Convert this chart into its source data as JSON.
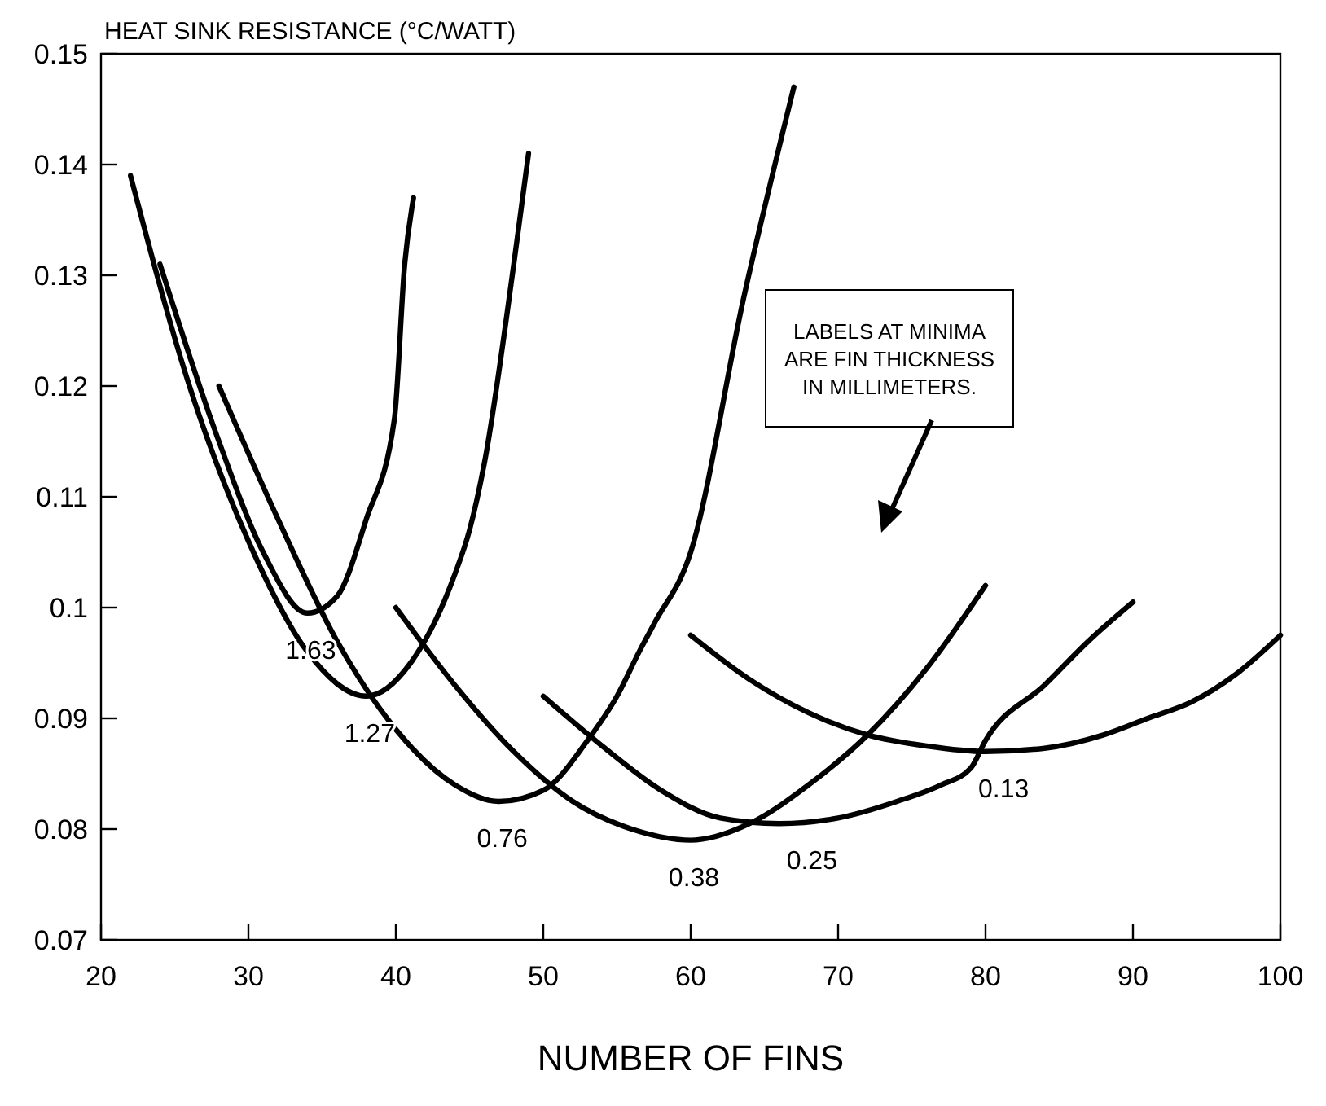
{
  "chart_data": {
    "type": "line",
    "ylabel": "HEAT SINK RESISTANCE (°C/WATT)",
    "xlabel": "NUMBER OF FINS",
    "xlim": [
      20,
      100
    ],
    "ylim": [
      0.07,
      0.15
    ],
    "xticks": [
      20,
      30,
      40,
      50,
      60,
      70,
      80,
      90,
      100
    ],
    "yticks": [
      0.07,
      0.08,
      0.09,
      0.1,
      0.11,
      0.12,
      0.13,
      0.14,
      0.15
    ],
    "grid": false,
    "marker": "none",
    "line_style": "solid",
    "series": [
      {
        "color": "#000000",
        "x": [
          24,
          28,
          31,
          34,
          36,
          38,
          39.9,
          40.6,
          41.2
        ],
        "values": [
          0.131,
          0.115,
          0.105,
          0.0995,
          0.101,
          0.108,
          0.117,
          0.131,
          0.137
        ]
      },
      {
        "color": "#000000",
        "x": [
          22,
          26,
          30,
          34,
          38,
          41,
          44,
          45,
          46,
          48,
          49
        ],
        "values": [
          0.139,
          0.12,
          0.106,
          0.096,
          0.092,
          0.095,
          0.103,
          0.107,
          0.113,
          0.131,
          0.141
        ]
      },
      {
        "color": "#000000",
        "x": [
          28,
          32,
          36,
          40,
          44,
          47,
          50,
          53,
          55,
          56.5,
          57.5,
          60,
          63.6,
          67
        ],
        "values": [
          0.12,
          0.108,
          0.097,
          0.089,
          0.084,
          0.0825,
          0.0835,
          0.088,
          0.092,
          0.096,
          0.0985,
          0.105,
          0.128,
          0.147
        ]
      },
      {
        "color": "#000000",
        "x": [
          40,
          44,
          48,
          52,
          56,
          60,
          64,
          68,
          72,
          76,
          80
        ],
        "values": [
          0.1,
          0.093,
          0.087,
          0.0825,
          0.08,
          0.079,
          0.0805,
          0.084,
          0.0885,
          0.0945,
          0.102
        ]
      },
      {
        "color": "#000000",
        "x": [
          50,
          54,
          58,
          62,
          66,
          70,
          74,
          77,
          79,
          80,
          84,
          87,
          90
        ],
        "values": [
          0.092,
          0.0875,
          0.0835,
          0.081,
          0.0805,
          0.081,
          0.0825,
          0.084,
          0.0855,
          0.088,
          0.093,
          0.097,
          0.1005
        ]
      },
      {
        "color": "#000000",
        "x": [
          60,
          64,
          68,
          72,
          76,
          80,
          84,
          88,
          91,
          94,
          97,
          100
        ],
        "values": [
          0.0975,
          0.0935,
          0.0905,
          0.0885,
          0.0875,
          0.087,
          0.0873,
          0.0885,
          0.09,
          0.0915,
          0.094,
          0.0975
        ]
      }
    ],
    "annotations": [
      {
        "text": "1.63",
        "x": 34,
        "y": 0.0995
      },
      {
        "text": "1.27",
        "x": 38,
        "y": 0.092
      },
      {
        "text": "0.76",
        "x": 47,
        "y": 0.0825
      },
      {
        "text": "0.38",
        "x": 60,
        "y": 0.079
      },
      {
        "text": "0.25",
        "x": 68,
        "y": 0.0805
      },
      {
        "text": "0.13",
        "x": 81,
        "y": 0.087
      },
      "LABELS AT MINIMA\nARE FIN THICKNESS\nIN MILLIMETERS."
    ]
  }
}
